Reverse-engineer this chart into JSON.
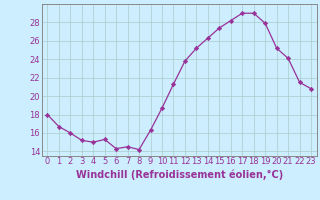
{
  "x": [
    0,
    1,
    2,
    3,
    4,
    5,
    6,
    7,
    8,
    9,
    10,
    11,
    12,
    13,
    14,
    15,
    16,
    17,
    18,
    19,
    20,
    21,
    22,
    23
  ],
  "y": [
    18.0,
    16.7,
    16.0,
    15.2,
    15.0,
    15.3,
    14.3,
    14.5,
    14.2,
    16.3,
    18.7,
    21.3,
    23.8,
    25.2,
    26.3,
    27.4,
    28.2,
    29.0,
    29.0,
    27.9,
    25.2,
    24.1,
    21.5,
    20.8
  ],
  "line_color": "#993399",
  "marker": "D",
  "marker_size": 2.2,
  "bg_color": "#cceeff",
  "grid_color": "#aacccc",
  "ylim": [
    13.5,
    30.0
  ],
  "xlim": [
    -0.5,
    23.5
  ],
  "yticks": [
    14,
    16,
    18,
    20,
    22,
    24,
    26,
    28
  ],
  "xtick_labels": [
    "0",
    "1",
    "2",
    "3",
    "4",
    "5",
    "6",
    "7",
    "8",
    "9",
    "10",
    "11",
    "12",
    "13",
    "14",
    "15",
    "16",
    "17",
    "18",
    "19",
    "20",
    "21",
    "22",
    "23"
  ],
  "xlabel": "Windchill (Refroidissement éolien,°C)",
  "line_color_hex": "#993399",
  "tick_color": "#993399",
  "label_fontsize": 7.0,
  "tick_fontsize": 6.0
}
